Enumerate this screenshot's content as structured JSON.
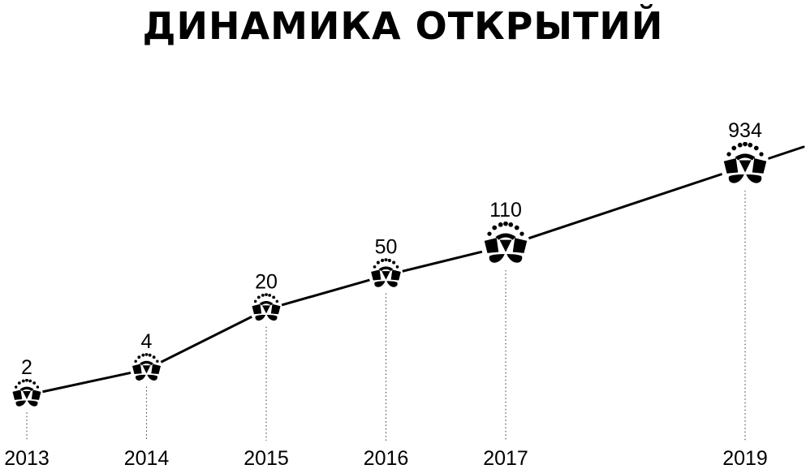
{
  "title": "ДИНАМИКА ОТКРЫТИЙ",
  "chart_data": {
    "type": "line",
    "title": "ДИНАМИКА ОТКРЫТИЙ",
    "x": [
      "2013",
      "2014",
      "2015",
      "2016",
      "2017",
      "2019"
    ],
    "values": [
      2,
      4,
      20,
      50,
      110,
      934
    ],
    "data_labels": [
      "2",
      "4",
      "20",
      "50",
      "110",
      "934"
    ],
    "xlabel": "",
    "ylabel": "",
    "grid": false,
    "marker_icon": "flower-icon",
    "colors": {
      "line": "#000000",
      "marker": "#000000",
      "background": "#ffffff"
    }
  }
}
